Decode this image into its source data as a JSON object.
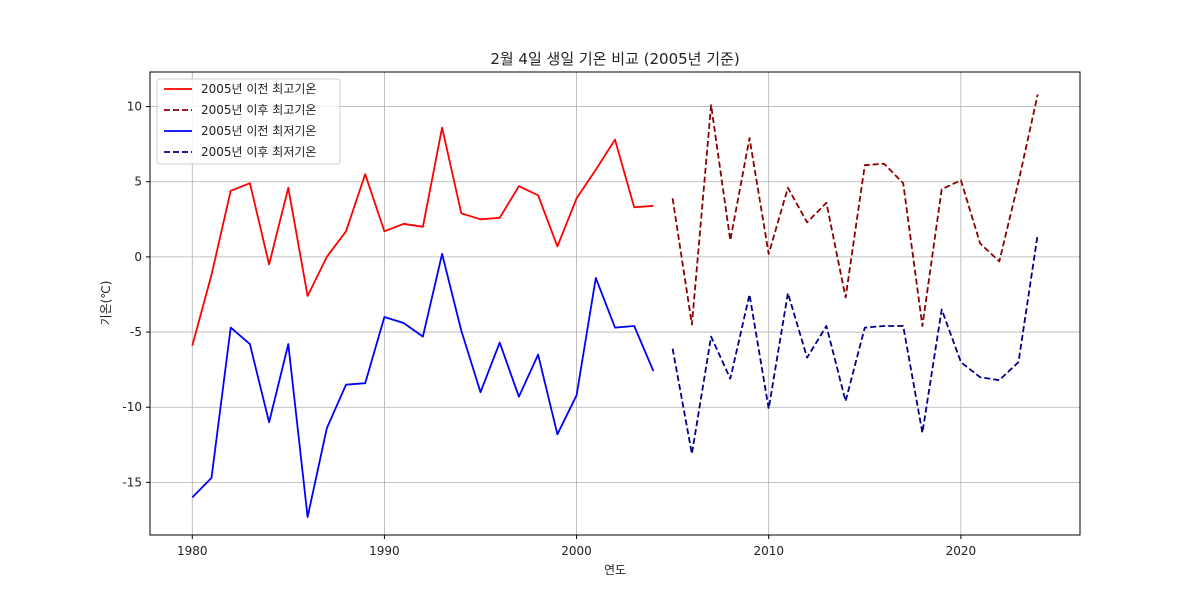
{
  "chart_data": {
    "type": "line",
    "title": "2월 4일 생일 기온 비교 (2005년 기준)",
    "xlabel": "연도",
    "ylabel": "기온(℃)",
    "xlim": [
      1977.8,
      2026.2
    ],
    "ylim": [
      -18.5,
      12.3
    ],
    "xticks": [
      1980,
      1990,
      2000,
      2010,
      2020
    ],
    "yticks": [
      -15,
      -10,
      -5,
      0,
      5,
      10
    ],
    "ytick_labels": [
      "-15",
      "-10",
      "-5",
      "0",
      "5",
      "10"
    ],
    "grid": true,
    "legend_position": "top-left",
    "series": [
      {
        "name": "2005년 이전 최고기온",
        "color": "#ff0000",
        "style": "solid",
        "x": [
          1980,
          1981,
          1982,
          1983,
          1984,
          1985,
          1986,
          1987,
          1988,
          1989,
          1990,
          1991,
          1992,
          1993,
          1994,
          1995,
          1996,
          1997,
          1998,
          1999,
          2000,
          2001,
          2002,
          2003,
          2004
        ],
        "values": [
          -5.9,
          -1.2,
          4.4,
          4.9,
          -0.5,
          4.6,
          -2.6,
          0.0,
          1.7,
          5.5,
          1.7,
          2.2,
          2.0,
          8.6,
          2.9,
          2.5,
          2.6,
          4.7,
          4.1,
          0.7,
          3.9,
          5.8,
          7.8,
          3.3,
          3.4
        ]
      },
      {
        "name": "2005년 이후 최고기온",
        "color": "#8b0000",
        "style": "dashed",
        "x": [
          2005,
          2006,
          2007,
          2008,
          2009,
          2010,
          2011,
          2012,
          2013,
          2014,
          2015,
          2016,
          2017,
          2018,
          2019,
          2020,
          2021,
          2022,
          2023,
          2024
        ],
        "values": [
          3.9,
          -4.5,
          10.1,
          1.1,
          7.9,
          0.2,
          4.6,
          2.3,
          3.6,
          -2.7,
          6.1,
          6.2,
          4.9,
          -4.6,
          4.5,
          5.1,
          0.9,
          -0.3,
          5.0,
          10.8
        ]
      },
      {
        "name": "2005년 이전 최저기온",
        "color": "#0000ff",
        "style": "solid",
        "x": [
          1980,
          1981,
          1982,
          1983,
          1984,
          1985,
          1986,
          1987,
          1988,
          1989,
          1990,
          1991,
          1992,
          1993,
          1994,
          1995,
          1996,
          1997,
          1998,
          1999,
          2000,
          2001,
          2002,
          2003,
          2004
        ],
        "values": [
          -16.0,
          -14.7,
          -4.7,
          -5.8,
          -11.0,
          -5.8,
          -17.3,
          -11.4,
          -8.5,
          -8.4,
          -4.0,
          -4.4,
          -5.3,
          0.2,
          -4.9,
          -9.0,
          -5.7,
          -9.3,
          -6.5,
          -11.8,
          -9.2,
          -1.4,
          -4.7,
          -4.6,
          -7.6
        ]
      },
      {
        "name": "2005년 이후 최저기온",
        "color": "#00008b",
        "style": "dashed",
        "x": [
          2005,
          2006,
          2007,
          2008,
          2009,
          2010,
          2011,
          2012,
          2013,
          2014,
          2015,
          2016,
          2017,
          2018,
          2019,
          2020,
          2021,
          2022,
          2023,
          2024
        ],
        "values": [
          -6.1,
          -13.1,
          -5.3,
          -8.1,
          -2.5,
          -10.1,
          -2.4,
          -6.7,
          -4.6,
          -9.6,
          -4.7,
          -4.6,
          -4.6,
          -11.7,
          -3.5,
          -7.0,
          -8.0,
          -8.2,
          -7.0,
          1.5
        ]
      }
    ]
  }
}
